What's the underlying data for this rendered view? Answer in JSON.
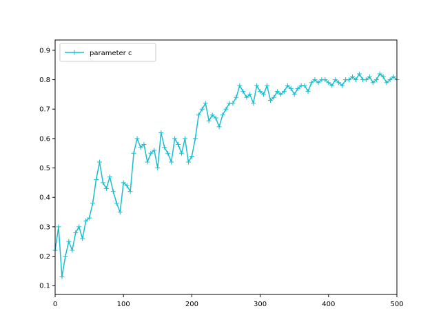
{
  "chart_data": {
    "type": "line",
    "title": "",
    "xlabel": "",
    "ylabel": "",
    "xlim": [
      0,
      500
    ],
    "ylim": [
      0.07,
      0.935
    ],
    "x_ticks": [
      0,
      100,
      200,
      300,
      400,
      500
    ],
    "y_ticks": [
      0.1,
      0.2,
      0.3,
      0.4,
      0.5,
      0.6,
      0.7,
      0.8,
      0.9
    ],
    "grid": false,
    "legend_position": "upper-left",
    "marker": "+",
    "series": [
      {
        "name": "parameter c",
        "color": "#17becf",
        "x": [
          0,
          5,
          10,
          15,
          20,
          25,
          30,
          35,
          40,
          45,
          50,
          55,
          60,
          65,
          70,
          75,
          80,
          85,
          90,
          95,
          100,
          105,
          110,
          115,
          120,
          125,
          130,
          135,
          140,
          145,
          150,
          155,
          160,
          165,
          170,
          175,
          180,
          185,
          190,
          195,
          200,
          205,
          210,
          215,
          220,
          225,
          230,
          235,
          240,
          245,
          250,
          255,
          260,
          265,
          270,
          275,
          280,
          285,
          290,
          295,
          300,
          305,
          310,
          315,
          320,
          325,
          330,
          335,
          340,
          345,
          350,
          355,
          360,
          365,
          370,
          375,
          380,
          385,
          390,
          395,
          400,
          405,
          410,
          415,
          420,
          425,
          430,
          435,
          440,
          445,
          450,
          455,
          460,
          465,
          470,
          475,
          480,
          485,
          490,
          495,
          500
        ],
        "y": [
          0.22,
          0.3,
          0.13,
          0.2,
          0.25,
          0.22,
          0.28,
          0.3,
          0.26,
          0.32,
          0.33,
          0.38,
          0.46,
          0.52,
          0.45,
          0.43,
          0.47,
          0.42,
          0.38,
          0.35,
          0.45,
          0.44,
          0.42,
          0.55,
          0.6,
          0.57,
          0.58,
          0.52,
          0.55,
          0.56,
          0.5,
          0.62,
          0.57,
          0.55,
          0.52,
          0.6,
          0.58,
          0.55,
          0.6,
          0.52,
          0.54,
          0.6,
          0.68,
          0.7,
          0.72,
          0.66,
          0.68,
          0.67,
          0.64,
          0.68,
          0.7,
          0.72,
          0.72,
          0.74,
          0.78,
          0.76,
          0.74,
          0.75,
          0.72,
          0.78,
          0.76,
          0.75,
          0.78,
          0.73,
          0.74,
          0.76,
          0.75,
          0.76,
          0.78,
          0.77,
          0.75,
          0.77,
          0.78,
          0.78,
          0.76,
          0.79,
          0.8,
          0.79,
          0.8,
          0.8,
          0.79,
          0.78,
          0.8,
          0.79,
          0.78,
          0.8,
          0.8,
          0.81,
          0.8,
          0.82,
          0.8,
          0.8,
          0.81,
          0.79,
          0.8,
          0.82,
          0.81,
          0.79,
          0.8,
          0.81,
          0.8
        ]
      }
    ]
  }
}
